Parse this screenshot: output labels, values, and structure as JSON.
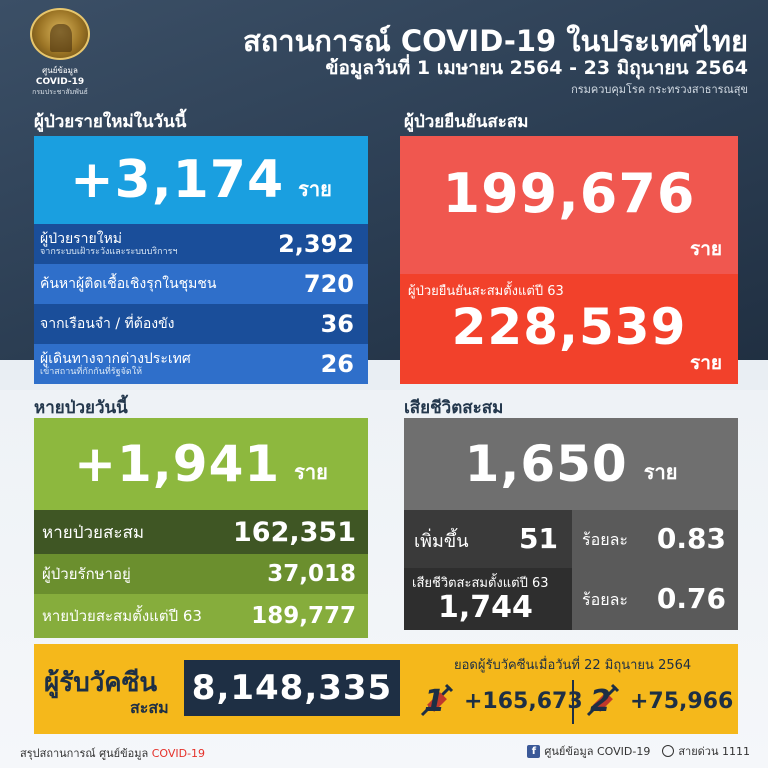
{
  "header": {
    "logo_line1": "ศูนย์ข้อมูล",
    "logo_line2": "COVID-19",
    "logo_line3": "กรมประชาสัมพันธ์",
    "title": "สถานการณ์ COVID-19 ในประเทศไทย",
    "subtitle": "ข้อมูลวันที่ 1 เมษายน 2564 - 23 มิถุนายน 2564",
    "department": "กรมควบคุมโรค กระทรวงสาธารณสุข"
  },
  "new_cases": {
    "section_label": "ผู้ป่วยรายใหม่ในวันนี้",
    "total": "+3,174",
    "unit": "ราย",
    "rows": [
      {
        "label": "ผู้ป่วยรายใหม่",
        "sub": "จากระบบเฝ้าระวังและระบบบริการฯ",
        "value": "2,392"
      },
      {
        "label": "ค้นหาผู้ติดเชื้อเชิงรุกในชุมชน",
        "sub": "",
        "value": "720"
      },
      {
        "label": "จากเรือนจำ / ที่ต้องขัง",
        "sub": "",
        "value": "36"
      },
      {
        "label": "ผู้เดินทางจากต่างประเทศ",
        "sub": "เข้าสถานที่กักกันที่รัฐจัดให้",
        "value": "26"
      }
    ]
  },
  "cumulative": {
    "section_label": "ผู้ป่วยยืนยันสะสม",
    "total": "199,676",
    "unit": "ราย",
    "since63_label": "ผู้ป่วยยืนยันสะสมตั้งแต่ปี 63",
    "since63_total": "228,539",
    "since63_unit": "ราย"
  },
  "recovered": {
    "section_label": "หายป่วยวันนี้",
    "total": "+1,941",
    "unit": "ราย",
    "cum_label": "หายป่วยสะสม",
    "cum_value": "162,351",
    "treating_label": "ผู้ป่วยรักษาอยู่",
    "treating_value": "37,018",
    "since63_label": "หายป่วยสะสมตั้งแต่ปี 63",
    "since63_value": "189,777"
  },
  "deaths": {
    "section_label": "เสียชีวิตสะสม",
    "total": "1,650",
    "unit": "ราย",
    "increase_label": "เพิ่มขึ้น",
    "increase_value": "51",
    "pct_label": "ร้อยละ",
    "pct_value": "0.83",
    "since63_label": "เสียชีวิตสะสมตั้งแต่ปี 63",
    "since63_value": "1,744",
    "pct63_label": "ร้อยละ",
    "pct63_value": "0.76"
  },
  "vaccine": {
    "label1": "ผู้รับวัคซีน",
    "label2": "สะสม",
    "total": "8,148,335",
    "sub": "ยอดผู้รับวัคซีนเมื่อวันที่ 22 มิถุนายน 2564",
    "dose1_num": "1",
    "dose1_value": "+165,673",
    "dose2_num": "2",
    "dose2_value": "+75,966",
    "icon": "syringe-icon"
  },
  "footer": {
    "left_prefix": "สรุปสถานการณ์ ศูนย์ข้อมูล ",
    "left_highlight": "COVID-19",
    "right_fb": "ศูนย์ข้อมูล COVID-19",
    "right_hotline": "สายด่วน 1111"
  },
  "colors": {
    "header_bg": "#2b3d52",
    "new_cases": "#1a9fe0",
    "cumulative": "#f0574f",
    "recovered": "#8db83e",
    "deaths": "#6f6f6f",
    "vaccine": "#f5b81b"
  }
}
